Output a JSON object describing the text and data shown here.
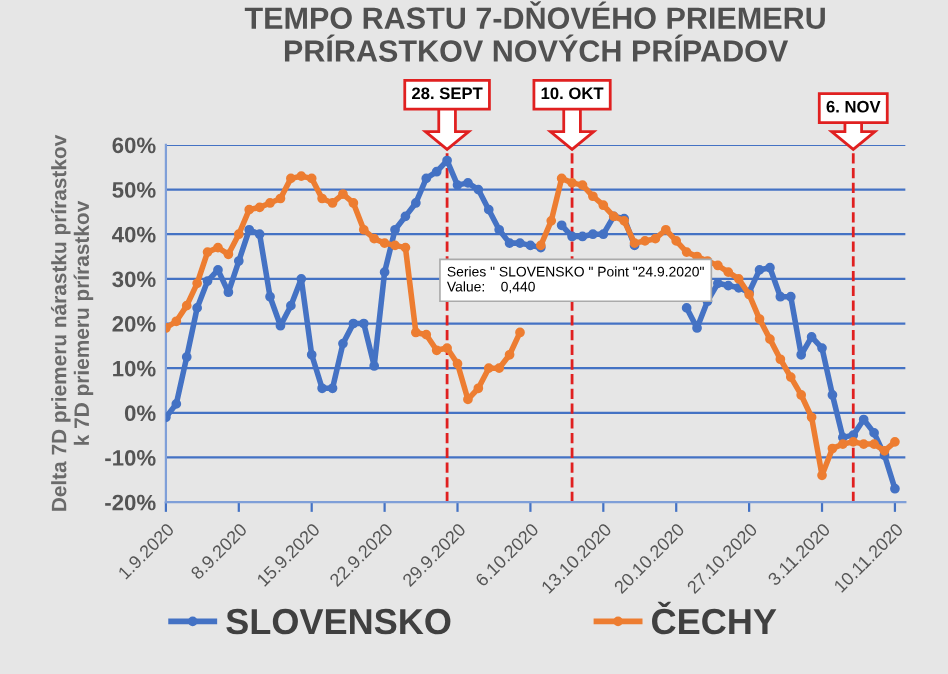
{
  "chart_data": {
    "type": "line",
    "title": "TEMPO RASTU 7-DŇOVÉHO PRIEMERU\nPRÍRASTKOV NOVÝCH PRÍPADOV",
    "ylabel": "Delta 7D priemeru nárastku prírastkov\nk 7D priemeru prírastkov",
    "x": [
      "2020-09-01",
      "2020-09-02",
      "2020-09-03",
      "2020-09-04",
      "2020-09-05",
      "2020-09-06",
      "2020-09-07",
      "2020-09-08",
      "2020-09-09",
      "2020-09-10",
      "2020-09-11",
      "2020-09-12",
      "2020-09-13",
      "2020-09-14",
      "2020-09-15",
      "2020-09-16",
      "2020-09-17",
      "2020-09-18",
      "2020-09-19",
      "2020-09-20",
      "2020-09-21",
      "2020-09-22",
      "2020-09-23",
      "2020-09-24",
      "2020-09-25",
      "2020-09-26",
      "2020-09-27",
      "2020-09-28",
      "2020-09-29",
      "2020-09-30",
      "2020-10-01",
      "2020-10-02",
      "2020-10-03",
      "2020-10-04",
      "2020-10-05",
      "2020-10-06",
      "2020-10-07",
      "2020-10-08",
      "2020-10-09",
      "2020-10-10",
      "2020-10-11",
      "2020-10-12",
      "2020-10-13",
      "2020-10-14",
      "2020-10-15",
      "2020-10-16",
      "2020-10-17",
      "2020-10-18",
      "2020-10-19",
      "2020-10-20",
      "2020-10-21",
      "2020-10-22",
      "2020-10-23",
      "2020-10-24",
      "2020-10-25",
      "2020-10-26",
      "2020-10-27",
      "2020-10-28",
      "2020-10-29",
      "2020-10-30",
      "2020-10-31",
      "2020-11-01",
      "2020-11-02",
      "2020-11-03",
      "2020-11-04",
      "2020-11-05",
      "2020-11-06",
      "2020-11-07",
      "2020-11-08",
      "2020-11-09",
      "2020-11-10"
    ],
    "series": [
      {
        "name": "SLOVENSKO",
        "color": "#4472c4",
        "values": [
          -1,
          2,
          12.5,
          23.5,
          29.5,
          32,
          27,
          34,
          41,
          40,
          26,
          19.5,
          24,
          30,
          13,
          5.5,
          5.5,
          15.5,
          20,
          20,
          10.5,
          31.5,
          41,
          44,
          47,
          52.5,
          54,
          56.5,
          51,
          51.5,
          50,
          45.5,
          41,
          38,
          38,
          37.5,
          37,
          null,
          42,
          39.5,
          39.5,
          40,
          40,
          44,
          43.5,
          37.5,
          null,
          null,
          null,
          null,
          23.5,
          19,
          25,
          29,
          28.5,
          28,
          27,
          32,
          32.5,
          26,
          26,
          13,
          17,
          14.5,
          4,
          -5.5,
          -5,
          -1.5,
          -4.5,
          -9.5,
          -17
        ]
      },
      {
        "name": "ČECHY",
        "color": "#ed7d31",
        "values": [
          19,
          20.5,
          24,
          29,
          36,
          37,
          35.5,
          40,
          45.5,
          46,
          47,
          48,
          52.5,
          53,
          52.5,
          48,
          47,
          49,
          47,
          41,
          39,
          38,
          37.5,
          37,
          18,
          17.5,
          14,
          14.5,
          11,
          3,
          5.5,
          10,
          10,
          13,
          18,
          null,
          37.5,
          43,
          52.5,
          51.5,
          51,
          48.5,
          46.5,
          44,
          43,
          38,
          38.5,
          39,
          41,
          38.5,
          36,
          35,
          34,
          33,
          31.5,
          30,
          26.5,
          21,
          16.5,
          12,
          8,
          4,
          -1,
          -14,
          -8,
          -7,
          -6.5,
          -7,
          -7,
          -8.5,
          -6.5
        ]
      }
    ],
    "xlim": [
      "2020-09-01",
      "2020-11-11"
    ],
    "xticks": [
      {
        "value": "2020-09-01",
        "label": "1.9.2020"
      },
      {
        "value": "2020-09-08",
        "label": "8.9.2020"
      },
      {
        "value": "2020-09-15",
        "label": "15.9.2020"
      },
      {
        "value": "2020-09-22",
        "label": "22.9.2020"
      },
      {
        "value": "2020-09-29",
        "label": "29.9.2020"
      },
      {
        "value": "2020-10-06",
        "label": "6.10.2020"
      },
      {
        "value": "2020-10-13",
        "label": "13.10.2020"
      },
      {
        "value": "2020-10-20",
        "label": "20.10.2020"
      },
      {
        "value": "2020-10-27",
        "label": "27.10.2020"
      },
      {
        "value": "2020-11-03",
        "label": "3.11.2020"
      },
      {
        "value": "2020-11-10",
        "label": "10.11.2020"
      }
    ],
    "ylim": [
      -20,
      60
    ],
    "yticks": [
      {
        "value": -20,
        "label": "-20%"
      },
      {
        "value": -10,
        "label": "-10%"
      },
      {
        "value": 0,
        "label": "0%"
      },
      {
        "value": 10,
        "label": "10%"
      },
      {
        "value": 20,
        "label": "20%"
      },
      {
        "value": 30,
        "label": "30%"
      },
      {
        "value": 40,
        "label": "40%"
      },
      {
        "value": 50,
        "label": "50%"
      },
      {
        "value": 60,
        "label": "60%"
      }
    ],
    "grid": "y",
    "legend": "bottom",
    "marker": "circle",
    "line_style": "solid",
    "ref_lines": [
      {
        "axis": "x",
        "value": "2020-09-28",
        "label": "28. SEPT",
        "color": "#e02020",
        "line_style": "dashed"
      },
      {
        "axis": "x",
        "value": "2020-10-10",
        "label": "10. OKT",
        "color": "#e02020",
        "line_style": "dashed"
      },
      {
        "axis": "x",
        "value": "2020-11-06",
        "label": "6. NOV",
        "color": "#e02020",
        "line_style": "dashed"
      }
    ],
    "annotations": [
      "Series \" SLOVENSKO \" Point \"24.9.2020\"\nValue:    0,440"
    ]
  }
}
